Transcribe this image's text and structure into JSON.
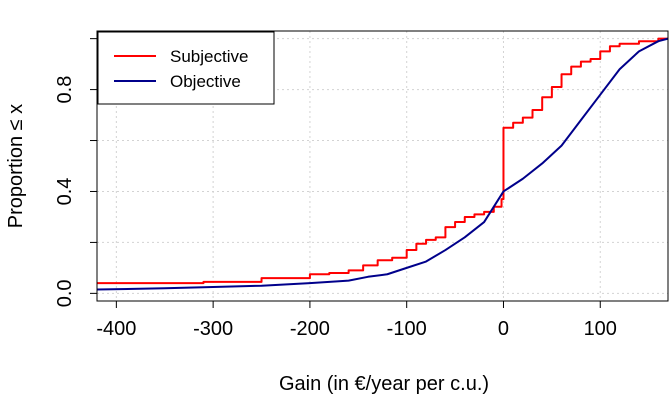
{
  "chart_data": {
    "type": "line",
    "xlabel": "Gain (in €/year per c.u.)",
    "ylabel": "Proportion  ≤  x",
    "xlim": [
      -420,
      170
    ],
    "ylim": [
      -0.03,
      1.03
    ],
    "xticks": [
      -400,
      -300,
      -200,
      -100,
      0,
      100
    ],
    "xtick_labels": [
      "-400",
      "-300",
      "-200",
      "-100",
      "0",
      "100"
    ],
    "yticks": [
      0.0,
      0.4,
      0.8
    ],
    "ytick_labels": [
      "0.0",
      "0.4",
      "0.8"
    ],
    "grid": true,
    "legend_position": "top-left",
    "series": [
      {
        "name": "Subjective",
        "color": "#ff0000",
        "step": true,
        "points": [
          [
            -420,
            0.04
          ],
          [
            -310,
            0.045
          ],
          [
            -250,
            0.06
          ],
          [
            -200,
            0.075
          ],
          [
            -180,
            0.08
          ],
          [
            -160,
            0.09
          ],
          [
            -145,
            0.11
          ],
          [
            -130,
            0.13
          ],
          [
            -115,
            0.14
          ],
          [
            -100,
            0.17
          ],
          [
            -90,
            0.195
          ],
          [
            -80,
            0.21
          ],
          [
            -70,
            0.22
          ],
          [
            -60,
            0.26
          ],
          [
            -50,
            0.28
          ],
          [
            -40,
            0.3
          ],
          [
            -30,
            0.31
          ],
          [
            -20,
            0.32
          ],
          [
            -10,
            0.34
          ],
          [
            -2,
            0.37
          ],
          [
            0,
            0.65
          ],
          [
            10,
            0.67
          ],
          [
            20,
            0.69
          ],
          [
            30,
            0.72
          ],
          [
            40,
            0.77
          ],
          [
            50,
            0.81
          ],
          [
            60,
            0.86
          ],
          [
            70,
            0.89
          ],
          [
            80,
            0.91
          ],
          [
            90,
            0.92
          ],
          [
            100,
            0.95
          ],
          [
            110,
            0.97
          ],
          [
            120,
            0.98
          ],
          [
            140,
            0.99
          ],
          [
            160,
            1.0
          ],
          [
            170,
            1.0
          ]
        ]
      },
      {
        "name": "Objective",
        "color": "#00008b",
        "step": false,
        "points": [
          [
            -420,
            0.015
          ],
          [
            -350,
            0.02
          ],
          [
            -300,
            0.025
          ],
          [
            -250,
            0.03
          ],
          [
            -200,
            0.04
          ],
          [
            -160,
            0.05
          ],
          [
            -140,
            0.065
          ],
          [
            -120,
            0.075
          ],
          [
            -100,
            0.1
          ],
          [
            -80,
            0.125
          ],
          [
            -60,
            0.17
          ],
          [
            -40,
            0.22
          ],
          [
            -20,
            0.28
          ],
          [
            0,
            0.4
          ],
          [
            20,
            0.45
          ],
          [
            40,
            0.51
          ],
          [
            60,
            0.58
          ],
          [
            80,
            0.68
          ],
          [
            100,
            0.78
          ],
          [
            120,
            0.88
          ],
          [
            140,
            0.95
          ],
          [
            160,
            0.99
          ],
          [
            170,
            1.0
          ]
        ]
      }
    ]
  }
}
